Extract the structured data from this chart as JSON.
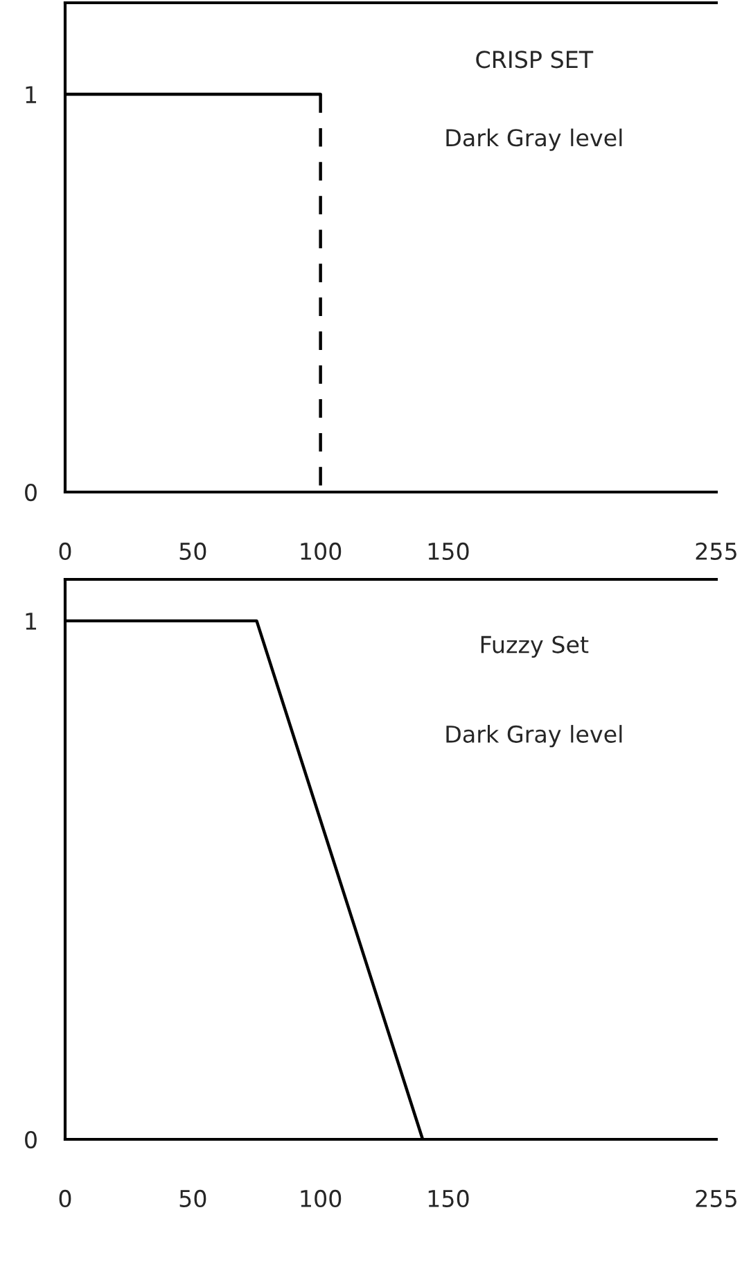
{
  "chart_data": [
    {
      "type": "line",
      "x": [
        0,
        100
      ],
      "series": [
        {
          "color": "#000000",
          "values": [
            1,
            1
          ],
          "line_style": "solid"
        },
        {
          "color": "#000000",
          "x": [
            100,
            100
          ],
          "values": [
            1,
            0
          ],
          "line_style": "dashed"
        }
      ],
      "xlim": [
        0,
        255
      ],
      "xticks": [
        0,
        50,
        100,
        150,
        255
      ],
      "ylim": [
        0,
        1.23
      ],
      "yticks": [
        0,
        1
      ],
      "grid": false,
      "legend": false,
      "marker": "none",
      "annotations": [
        "CRISP SET",
        "Dark Gray level"
      ]
    },
    {
      "type": "line",
      "x": [
        0,
        75,
        140
      ],
      "series": [
        {
          "color": "#000000",
          "values": [
            1,
            1,
            0
          ],
          "line_style": "solid"
        }
      ],
      "xlim": [
        0,
        255
      ],
      "xticks": [
        0,
        50,
        100,
        150,
        255
      ],
      "ylim": [
        0,
        1.08
      ],
      "yticks": [
        0,
        1
      ],
      "grid": false,
      "legend": false,
      "marker": "none",
      "annotations": [
        "Fuzzy Set",
        "Dark Gray level"
      ]
    }
  ]
}
